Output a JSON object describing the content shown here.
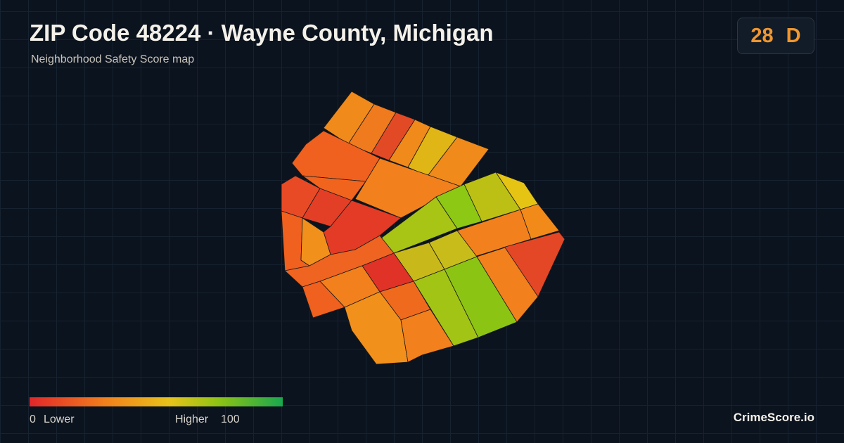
{
  "header": {
    "title": "ZIP Code 48224 · Wayne County, Michigan",
    "subtitle": "Neighborhood Safety Score map"
  },
  "badge": {
    "score": 28,
    "grade": "D"
  },
  "legend": {
    "min": 0,
    "min_label": "Lower",
    "max_label": "Higher",
    "max": 100
  },
  "footer": {
    "brand": "CrimeScore.io"
  }
}
